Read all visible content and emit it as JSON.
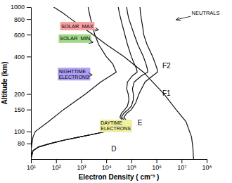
{
  "chart_data": {
    "type": "line",
    "log": true,
    "grid": false,
    "color": "#111111",
    "xlabel": "Electron Density ( cm⁻³ )",
    "ylabel": "Altitude (km)",
    "xlim": [
      10,
      100000000
    ],
    "ylim": [
      60,
      1000
    ],
    "xticks": [
      {
        "value": 10,
        "label": "10¹"
      },
      {
        "value": 100,
        "label": "10²"
      },
      {
        "value": 1000,
        "label": "10³"
      },
      {
        "value": 10000,
        "label": "10⁴"
      },
      {
        "value": 100000,
        "label": "10⁵"
      },
      {
        "value": 1000000,
        "label": "10⁶"
      },
      {
        "value": 10000000,
        "label": "10⁷"
      },
      {
        "value": 100000000,
        "label": "10⁸"
      }
    ],
    "yticks": [
      80,
      100,
      150,
      200,
      400,
      600,
      800,
      1000
    ],
    "series": [
      {
        "x": [
          30000000,
          28000000,
          25000000,
          15000000,
          6000000,
          2000000,
          300000,
          50000,
          10000,
          3000,
          1000,
          400,
          180,
          80
        ],
        "values": [
          60,
          75,
          90,
          120,
          150,
          200,
          300,
          400,
          500,
          600,
          700,
          800,
          900,
          1000
        ]
      },
      {
        "x": [
          10,
          10,
          11,
          12,
          15,
          50,
          200,
          1500,
          6000,
          25000,
          18000,
          10000,
          5000,
          3500,
          2800,
          2400,
          2100,
          1900
        ],
        "values": [
          60,
          70,
          80,
          90,
          100,
          120,
          150,
          200,
          250,
          300,
          350,
          400,
          500,
          600,
          700,
          800,
          900,
          1000
        ]
      },
      {
        "x": [
          10,
          12,
          20,
          60,
          200,
          800,
          3000,
          10000,
          25000,
          55000,
          70000,
          50000,
          35000,
          40000,
          55000,
          70000,
          80000,
          75000,
          65000,
          70000,
          110000,
          170000,
          160000,
          130000,
          100000,
          70000,
          55000,
          45000,
          38000,
          33000,
          30000
        ],
        "values": [
          60,
          70,
          75,
          80,
          85,
          90,
          95,
          100,
          105,
          110,
          115,
          120,
          130,
          140,
          150,
          160,
          180,
          200,
          220,
          250,
          280,
          300,
          320,
          350,
          400,
          500,
          600,
          700,
          800,
          900,
          1000
        ]
      },
      {
        "x": [
          10,
          12,
          20,
          60,
          200,
          800,
          3000,
          10000,
          25000,
          60000,
          80000,
          60000,
          40000,
          50000,
          75000,
          100000,
          120000,
          120000,
          110000,
          130000,
          250000,
          450000,
          430000,
          380000,
          300000,
          180000,
          130000,
          100000,
          80000,
          70000,
          65000
        ],
        "values": [
          60,
          70,
          75,
          80,
          85,
          90,
          95,
          100,
          105,
          110,
          115,
          120,
          130,
          140,
          150,
          160,
          180,
          200,
          220,
          250,
          280,
          300,
          320,
          350,
          400,
          500,
          600,
          700,
          800,
          900,
          1000
        ]
      },
      {
        "x": [
          10,
          12,
          20,
          60,
          200,
          800,
          3000,
          10000,
          25000,
          65000,
          90000,
          70000,
          50000,
          65000,
          100000,
          150000,
          200000,
          350000,
          700000,
          1100000,
          1050000,
          900000,
          700000,
          420000,
          310000,
          295000,
          280000,
          250000,
          230000,
          220000
        ],
        "values": [
          60,
          70,
          75,
          80,
          85,
          90,
          95,
          100,
          105,
          110,
          115,
          120,
          130,
          140,
          150,
          170,
          200,
          250,
          280,
          300,
          320,
          350,
          400,
          500,
          600,
          650,
          700,
          800,
          900,
          1000
        ]
      }
    ],
    "annotations": [
      {
        "text": "SOLAR  MAX",
        "x": 5000,
        "y": 655,
        "text_x": 160,
        "text_y": 680,
        "color": "#f5a0a0"
      },
      {
        "text": "SOLAR  MIN",
        "x": 3000,
        "y": 520,
        "text_x": 140,
        "text_y": 540,
        "color": "#a0d888"
      },
      {
        "text": "NIGHTTIME\nELECTRONS",
        "x": 2800,
        "y": 285,
        "text_x": 130,
        "text_y": 295,
        "color": "#b0a0f5"
      },
      {
        "text": "DAYTIME\nELECTRONS",
        "x": 90000,
        "y": 108,
        "text_x": 6000,
        "text_y": 113,
        "color": "#f0f0a0"
      },
      {
        "text": "NEUTRALS",
        "x": 6000000,
        "y": 790,
        "text_x": 25000000,
        "text_y": 870
      },
      {
        "text": "F2",
        "x": 2500000,
        "y": 340
      },
      {
        "text": "F1",
        "x": 2500000,
        "y": 205
      },
      {
        "text": "E",
        "x": 220000,
        "y": 118
      },
      {
        "text": "D",
        "x": 20000,
        "y": 73
      }
    ]
  }
}
